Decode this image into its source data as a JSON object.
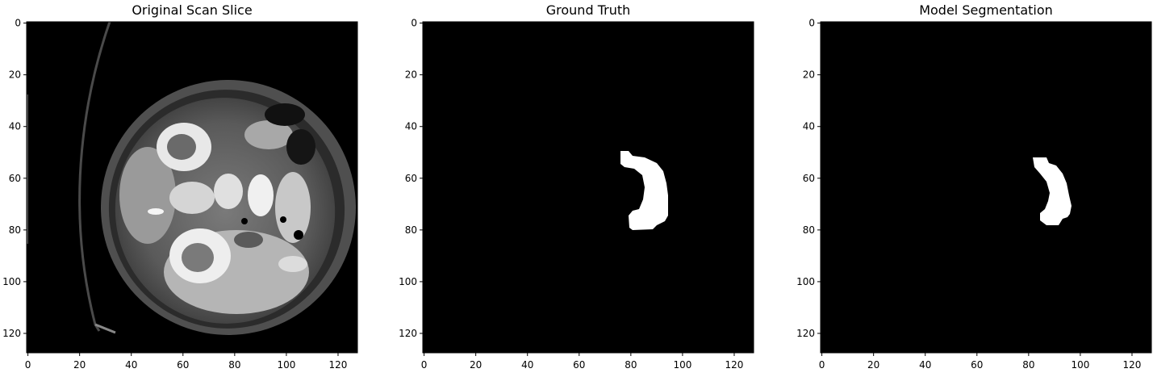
{
  "colors": {
    "background": "#ffffff",
    "image_black": "#000000",
    "mask_white": "#ffffff"
  },
  "x_ticks": [
    "0",
    "20",
    "40",
    "60",
    "80",
    "100",
    "120"
  ],
  "y_ticks": [
    "0",
    "20",
    "40",
    "60",
    "80",
    "100",
    "120"
  ],
  "panels": [
    {
      "title": "Original Scan Slice",
      "kind": "grayscale-ct-slice"
    },
    {
      "title": "Ground Truth",
      "kind": "binary-mask"
    },
    {
      "title": "Model Segmentation",
      "kind": "binary-mask"
    }
  ]
}
